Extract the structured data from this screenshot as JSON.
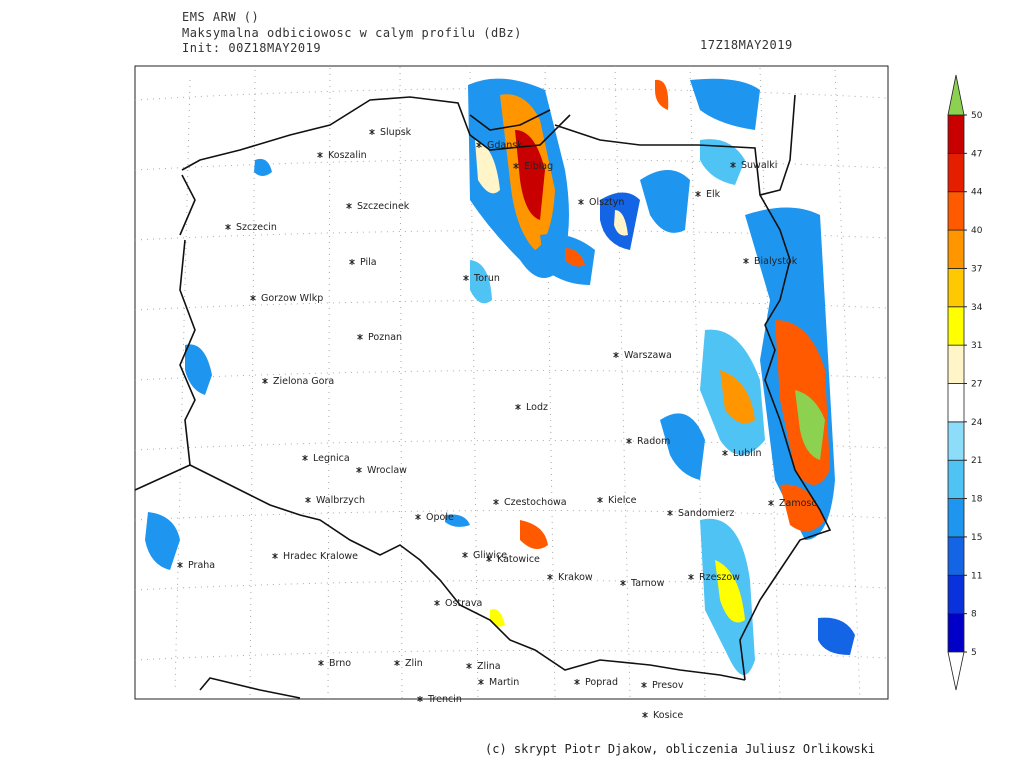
{
  "header": {
    "model": "EMS ARW ()",
    "field": "Maksymalna odbiciowosc w calym profilu (dBz)",
    "init": "Init: 00Z18MAY2019",
    "valid": "17Z18MAY2019"
  },
  "cities": [
    "Slupsk",
    "Koszalin",
    "Szczecinek",
    "Szczecin",
    "Pila",
    "Gorzow Wlkp",
    "Poznan",
    "Zielona Gora",
    "Legnica",
    "Wroclaw",
    "Walbrzych",
    "Opole",
    "Hradec Kralowe",
    "Praha",
    "Brno",
    "Zlin",
    "Zlina",
    "Martin",
    "Trencin",
    "Poprad",
    "Presov",
    "Kosice",
    "Ostrava",
    "Gliwice",
    "Katowice",
    "Krakow",
    "Tarnow",
    "Rzeszow",
    "Sandomierz",
    "Kielce",
    "Czestochowa",
    "Lodz",
    "Warszawa",
    "Radom",
    "Lublin",
    "Zamosc",
    "Bialystok",
    "Suwalki",
    "Elk",
    "Olsztyn",
    "Elblag",
    "Gdansk",
    "Torun"
  ],
  "legend": {
    "levels": [
      5,
      8,
      11,
      15,
      18,
      21,
      24,
      27,
      31,
      34,
      37,
      40,
      44,
      47,
      50
    ],
    "colors": [
      "#0000c8",
      "#0a32dc",
      "#1464e6",
      "#1e96f0",
      "#50c3f5",
      "#8cdcfa",
      "#ffffff",
      "#fff5c8",
      "#ffff00",
      "#ffc800",
      "#ff9600",
      "#ff5a00",
      "#e61e00",
      "#c80000"
    ],
    "under_color": "#ffffff",
    "over_color": "#8cd250"
  },
  "credit": "(c) skrypt Piotr Djakow, obliczenia Juliusz Orlikowski"
}
